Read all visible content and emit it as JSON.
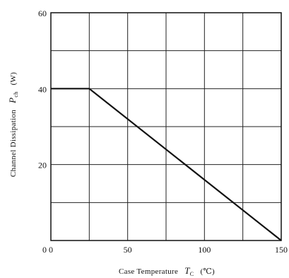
{
  "chart_data": {
    "type": "line",
    "title": "",
    "xlabel": "Case Temperature",
    "xlabel_symbol": "T",
    "xlabel_sub": "C",
    "xlabel_unit": "(℃)",
    "ylabel": "Channel Dissipation",
    "ylabel_symbol": "P",
    "ylabel_sub": "ch",
    "ylabel_unit": "(W)",
    "xlim": [
      0,
      150
    ],
    "ylim": [
      0,
      60
    ],
    "x_ticks": [
      0,
      50,
      100,
      150
    ],
    "y_ticks": [
      20,
      40,
      60
    ],
    "x_gridlines": [
      0,
      25,
      50,
      75,
      100,
      125,
      150
    ],
    "y_gridlines": [
      0,
      10,
      20,
      30,
      40,
      50,
      60
    ],
    "grid": true,
    "series": [
      {
        "x": [
          0,
          25,
          150
        ],
        "y": [
          40,
          40,
          0
        ]
      }
    ]
  }
}
